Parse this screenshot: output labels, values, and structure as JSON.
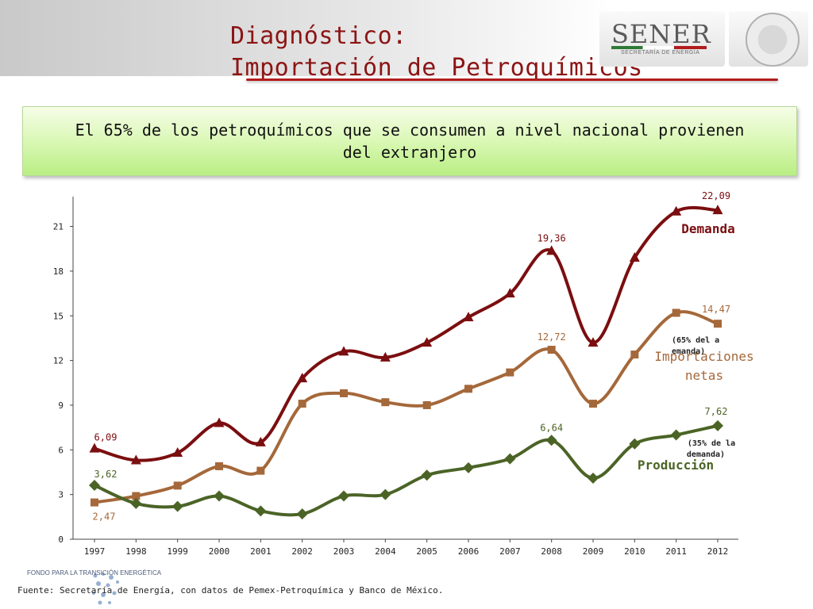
{
  "header": {
    "title_line1": "Diagnóstico:",
    "title_line2": "Importación de Petroquímicos",
    "logo_text": "SENER",
    "logo_subtitle": "SECRETARÍA DE ENERGÍA",
    "accent_color": "#8c1414"
  },
  "banner": {
    "text": "El 65% de los petroquímicos que se consumen a nivel nacional provienen del extranjero"
  },
  "footer": {
    "source": "Fuente: Secretaría de Energía, con datos de Pemex-Petroquímica y Banco de México.",
    "fund_name": "FONDO PARA LA TRANSICIÓN ENERGÉTICA"
  },
  "chart_data": {
    "type": "line",
    "categories": [
      "1997",
      "1998",
      "1999",
      "2000",
      "2001",
      "2002",
      "2003",
      "2004",
      "2005",
      "2006",
      "2007",
      "2008",
      "2009",
      "2010",
      "2011",
      "2012"
    ],
    "ylim": [
      0,
      23
    ],
    "yticks": [
      0,
      3,
      6,
      9,
      12,
      15,
      18,
      21
    ],
    "series": [
      {
        "name": "Demanda",
        "color": "#7b0e10",
        "marker": "triangle",
        "values": [
          6.09,
          5.3,
          5.8,
          7.8,
          6.5,
          10.8,
          12.6,
          12.2,
          13.2,
          14.9,
          16.5,
          19.36,
          13.2,
          18.9,
          22.0,
          22.09
        ],
        "labels": [
          {
            "index": 0,
            "text": "6,09"
          },
          {
            "index": 11,
            "text": "19,36"
          },
          {
            "index": 15,
            "text": "22,09"
          }
        ]
      },
      {
        "name": "Importaciones netas",
        "name_lines": [
          "Importaciones",
          "netas"
        ],
        "note": "(65% del a demanda)",
        "color": "#a5683a",
        "marker": "square",
        "values": [
          2.47,
          2.9,
          3.6,
          4.9,
          4.6,
          9.1,
          9.8,
          9.2,
          9.0,
          10.1,
          11.2,
          12.72,
          9.1,
          12.4,
          15.2,
          14.47
        ],
        "labels": [
          {
            "index": 0,
            "text": "2,47"
          },
          {
            "index": 11,
            "text": "12,72"
          },
          {
            "index": 15,
            "text": "14,47"
          }
        ]
      },
      {
        "name": "Producción",
        "note_lines": [
          "(35% de la",
          "demanda)"
        ],
        "color": "#4b6426",
        "marker": "diamond",
        "values": [
          3.62,
          2.4,
          2.2,
          2.9,
          1.9,
          1.7,
          2.9,
          3.0,
          4.3,
          4.8,
          5.4,
          6.64,
          4.1,
          6.4,
          7.0,
          7.62
        ],
        "labels": [
          {
            "index": 0,
            "text": "3,62"
          },
          {
            "index": 11,
            "text": "6,64"
          },
          {
            "index": 15,
            "text": "7,62"
          }
        ]
      }
    ]
  }
}
